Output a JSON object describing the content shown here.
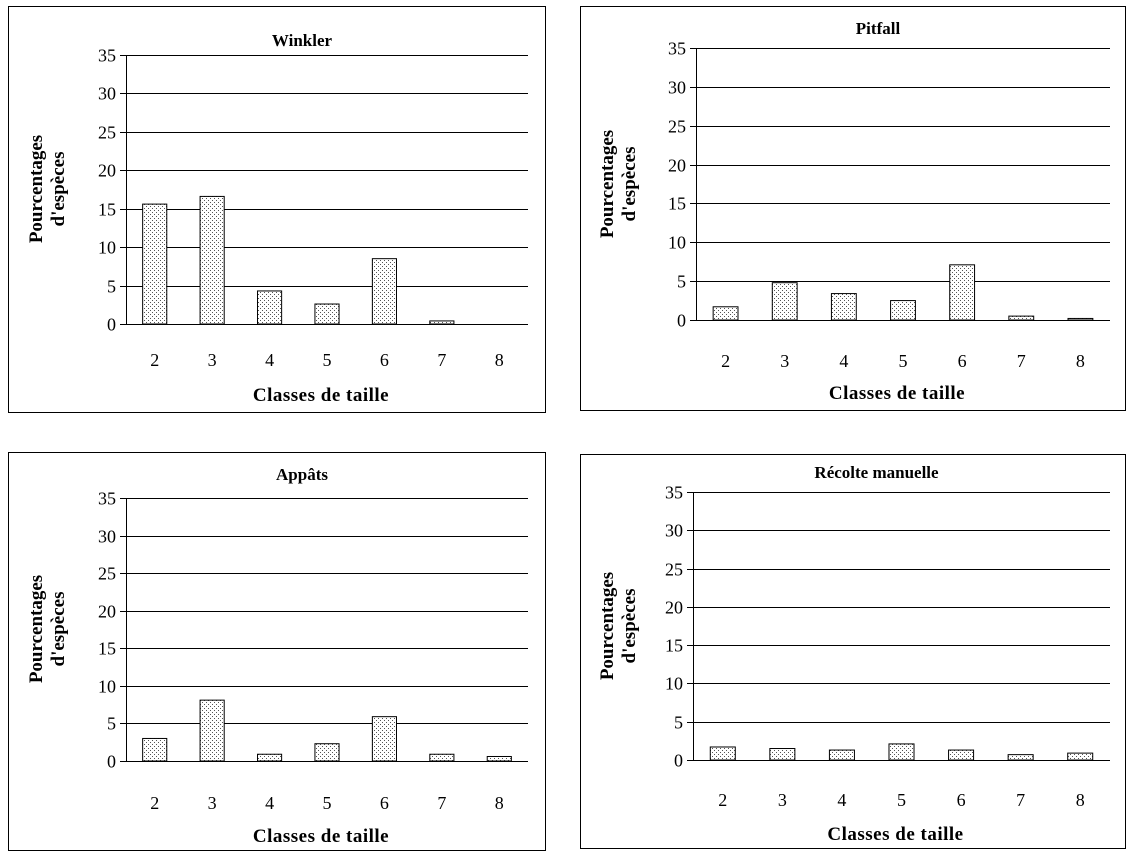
{
  "chart_data": [
    {
      "type": "bar",
      "title": "Winkler",
      "xlabel": "Classes de taille",
      "ylabel": [
        "Pourcentages",
        "d'espèces"
      ],
      "categories": [
        "2",
        "3",
        "4",
        "5",
        "6",
        "7",
        "8"
      ],
      "values": [
        15.6,
        16.6,
        4.3,
        2.6,
        8.5,
        0.4,
        0
      ],
      "ylim": [
        0,
        35
      ],
      "yticks": [
        0,
        5,
        10,
        15,
        20,
        25,
        30,
        35
      ],
      "grid": true
    },
    {
      "type": "bar",
      "title": "Pitfall",
      "xlabel": "Classes de taille",
      "ylabel": [
        "Pourcentages",
        "d'espèces"
      ],
      "categories": [
        "2",
        "3",
        "4",
        "5",
        "6",
        "7",
        "8"
      ],
      "values": [
        1.7,
        4.8,
        3.4,
        2.5,
        7.1,
        0.5,
        0.2
      ],
      "ylim": [
        0,
        35
      ],
      "yticks": [
        0,
        5,
        10,
        15,
        20,
        25,
        30,
        35
      ],
      "grid": true
    },
    {
      "type": "bar",
      "title": "Appâts",
      "xlabel": "Classes de taille",
      "ylabel": [
        "Pourcentages",
        "d'espèces"
      ],
      "categories": [
        "2",
        "3",
        "4",
        "5",
        "6",
        "7",
        "8"
      ],
      "values": [
        3.0,
        8.1,
        0.9,
        2.3,
        5.9,
        0.9,
        0.6
      ],
      "ylim": [
        0,
        35
      ],
      "yticks": [
        0,
        5,
        10,
        15,
        20,
        25,
        30,
        35
      ],
      "grid": true
    },
    {
      "type": "bar",
      "title": "Récolte manuelle",
      "xlabel": "Classes de taille",
      "ylabel": [
        "Pourcentages",
        "d'espèces"
      ],
      "categories": [
        "2",
        "3",
        "4",
        "5",
        "6",
        "7",
        "8"
      ],
      "values": [
        1.7,
        1.5,
        1.3,
        2.1,
        1.3,
        0.7,
        0.9
      ],
      "ylim": [
        0,
        35
      ],
      "yticks": [
        0,
        5,
        10,
        15,
        20,
        25,
        30,
        35
      ],
      "grid": true
    }
  ]
}
